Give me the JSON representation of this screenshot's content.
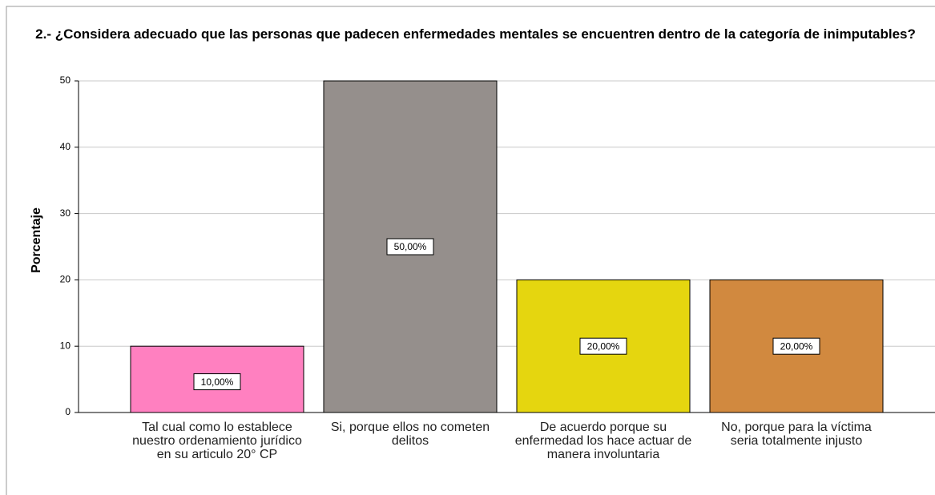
{
  "chart_data": {
    "type": "bar",
    "title": "2.- ¿Considera adecuado que las personas que padecen enfermedades mentales se encuentren dentro de la categoría de inimputables?",
    "y_label": "Porcentaje",
    "categories": [
      "Tal cual como lo establece nuestro ordenamiento jurídico en su articulo 20° CP",
      "Si, porque ellos no cometen delitos",
      "De acuerdo porque su enfermedad los hace actuar de manera involuntaria",
      "No, porque para la víctima seria totalmente injusto"
    ],
    "values": [
      10,
      50,
      20,
      20
    ],
    "value_labels": [
      "10,00%",
      "50,00%",
      "20,00%",
      "20,00%"
    ],
    "colors": [
      "#ff80c0",
      "#958f8c",
      "#e5d60f",
      "#d1893f"
    ],
    "ylim": [
      0,
      50
    ],
    "yticks": [
      0,
      10,
      20,
      30,
      40,
      50
    ],
    "grid": true
  }
}
